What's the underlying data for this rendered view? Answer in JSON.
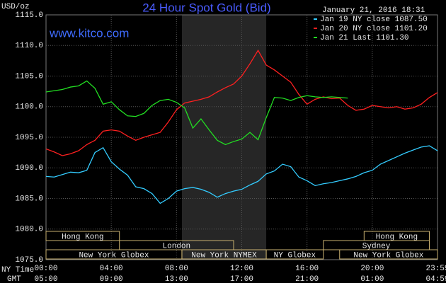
{
  "chart_data": {
    "type": "line",
    "title": "24 Hour Spot Gold (Bid)",
    "subtitle": "January 21, 2016 18:31",
    "watermark": "www.kitco.com",
    "y_label": "USD/oz",
    "x_label": "NY Time",
    "x2_label": "GMT",
    "legend": "upper right",
    "grid": true,
    "background": "#000000",
    "highlight_x": [
      8.33,
      13.5
    ],
    "ylim": [
      1075,
      1115
    ],
    "yticks": [
      {
        "value": 1075,
        "label": "1075.0"
      },
      {
        "value": 1080,
        "label": "1080.0"
      },
      {
        "value": 1085,
        "label": "1085.0"
      },
      {
        "value": 1090,
        "label": "1090.0"
      },
      {
        "value": 1095,
        "label": "1095.0"
      },
      {
        "value": 1100,
        "label": "1100.0"
      },
      {
        "value": 1105,
        "label": "1105.0"
      },
      {
        "value": 1110,
        "label": "1110.0"
      },
      {
        "value": 1115,
        "label": "1115.0"
      }
    ],
    "xlim": [
      0,
      24
    ],
    "xticks": [
      {
        "value": 0,
        "label": "00:00"
      },
      {
        "value": 4,
        "label": "04:00"
      },
      {
        "value": 8,
        "label": "08:00"
      },
      {
        "value": 12,
        "label": "12:00"
      },
      {
        "value": 16,
        "label": "16:00"
      },
      {
        "value": 20,
        "label": "20:00"
      },
      {
        "value": 24,
        "label": "23:59"
      }
    ],
    "x2ticks": [
      {
        "value": 0,
        "label": "05:00"
      },
      {
        "value": 4,
        "label": "09:00"
      },
      {
        "value": 8,
        "label": "13:00"
      },
      {
        "value": 12,
        "label": "17:00"
      },
      {
        "value": 16,
        "label": "21:00"
      },
      {
        "value": 20,
        "label": "01:00"
      },
      {
        "value": 24,
        "label": "04:59"
      }
    ],
    "sessions": [
      {
        "name": "Hong Kong",
        "row": 0,
        "start": 0,
        "end": 4.5
      },
      {
        "name": "Hong Kong",
        "row": 0,
        "start": 19.5,
        "end": 23.5
      },
      {
        "name": "London",
        "row": 1,
        "start": 4.5,
        "end": 11.5
      },
      {
        "name": "Sydney",
        "row": 1,
        "start": 17,
        "end": 23.5
      },
      {
        "name": "New York Globex",
        "row": 2,
        "start": 0,
        "end": 8.33
      },
      {
        "name": "New York NYMEX",
        "row": 2,
        "start": 8.33,
        "end": 13.5
      },
      {
        "name": "NY Globex",
        "row": 2,
        "start": 13.5,
        "end": 17
      },
      {
        "name": "New York Globex",
        "row": 2,
        "start": 18,
        "end": 24
      }
    ],
    "x": [
      0,
      0.5,
      1,
      1.5,
      2,
      2.5,
      3,
      3.5,
      4,
      4.5,
      5,
      5.5,
      6,
      6.5,
      7,
      7.5,
      8,
      8.5,
      9,
      9.5,
      10,
      10.5,
      11,
      11.5,
      12,
      12.5,
      13,
      13.5,
      14,
      14.5,
      15,
      15.5,
      16,
      16.5,
      17,
      17.5,
      18,
      18.5,
      19,
      19.5,
      20,
      20.5,
      21,
      21.5,
      22,
      22.5,
      23,
      23.5,
      24
    ],
    "series": [
      {
        "name": "Jan 19 NY close 1087.50",
        "color": "#33ccff",
        "values": [
          1088.6,
          1088.5,
          1088.9,
          1089.3,
          1089.2,
          1089.6,
          1092.5,
          1093.3,
          1091.0,
          1089.8,
          1088.8,
          1086.9,
          1086.6,
          1085.8,
          1084.2,
          1085.0,
          1086.2,
          1086.6,
          1086.8,
          1086.5,
          1086.0,
          1085.2,
          1085.8,
          1086.2,
          1086.5,
          1087.2,
          1087.8,
          1089.0,
          1089.5,
          1090.6,
          1090.2,
          1088.5,
          1087.9,
          1087.1,
          1087.4,
          1087.6,
          1087.9,
          1088.2,
          1088.6,
          1089.2,
          1089.6,
          1090.6,
          1091.2,
          1091.8,
          1092.4,
          1092.9,
          1093.4,
          1093.6,
          1092.8
        ]
      },
      {
        "name": "Jan 20 NY close 1101.20",
        "color": "#ff2020",
        "values": [
          1093.1,
          1092.6,
          1092.0,
          1092.3,
          1092.8,
          1093.8,
          1094.5,
          1096.0,
          1096.2,
          1096.0,
          1095.2,
          1094.5,
          1095.0,
          1095.4,
          1095.8,
          1097.5,
          1099.5,
          1100.6,
          1100.9,
          1101.2,
          1101.6,
          1102.4,
          1103.1,
          1103.7,
          1105.0,
          1107.0,
          1109.2,
          1106.8,
          1106.0,
          1105.0,
          1104.0,
          1102.0,
          1100.4,
          1101.2,
          1101.6,
          1101.3,
          1101.4,
          1100.2,
          1099.4,
          1099.6,
          1100.2,
          1100.0,
          1099.8,
          1100.0,
          1099.6,
          1099.8,
          1100.4,
          1101.5,
          1102.3
        ]
      },
      {
        "name": "Jan 21 Last 1101.30",
        "color": "#22dd22",
        "values": [
          1102.4,
          1102.6,
          1102.8,
          1103.2,
          1103.4,
          1104.2,
          1103.0,
          1100.4,
          1100.8,
          1099.5,
          1098.5,
          1098.4,
          1098.9,
          1100.2,
          1101.0,
          1101.2,
          1100.7,
          1099.8,
          1096.5,
          1098.0,
          1096.2,
          1094.5,
          1093.8,
          1094.3,
          1094.7,
          1095.8,
          1094.6,
          1098.2,
          1101.5,
          1101.4,
          1101.0,
          1101.5,
          1101.8,
          1101.6,
          1101.5,
          1101.6,
          1101.5,
          1101.4,
          null,
          null,
          null,
          null,
          null,
          null,
          null,
          null,
          null,
          null,
          null
        ]
      }
    ]
  }
}
